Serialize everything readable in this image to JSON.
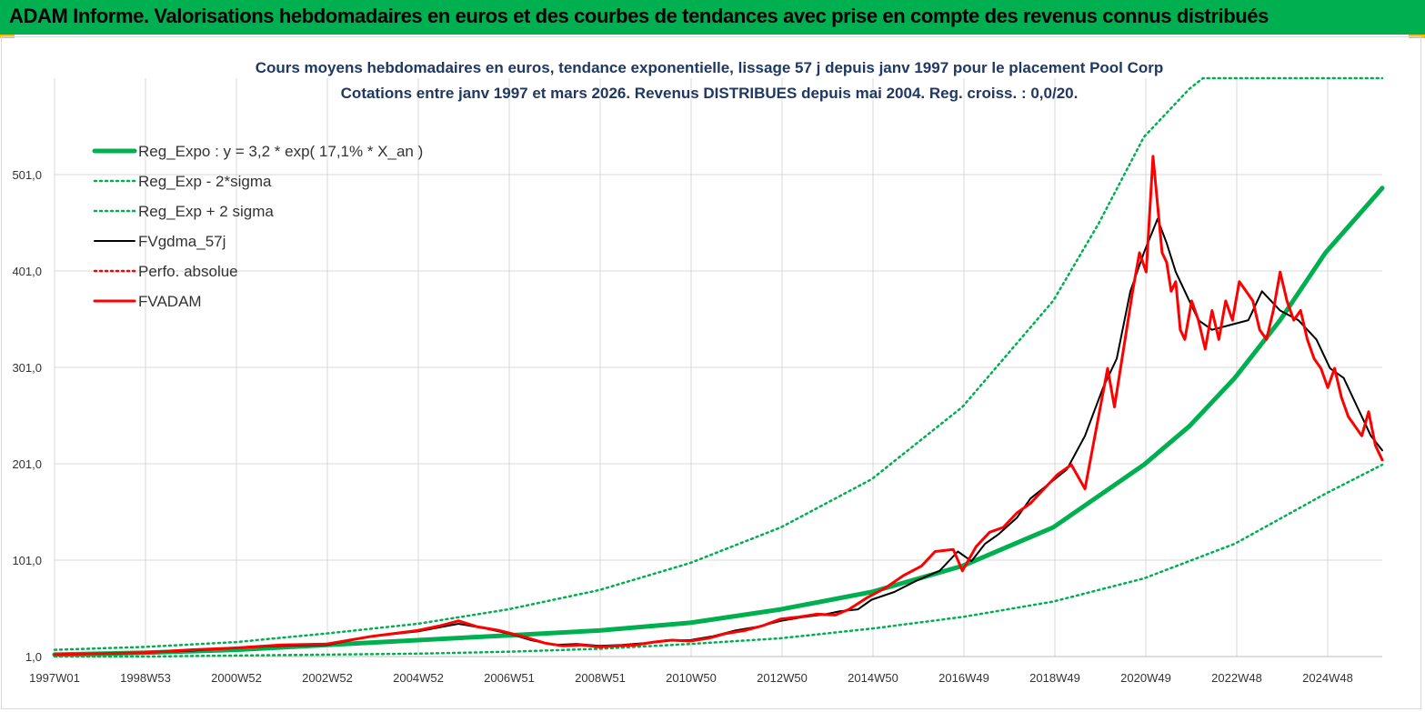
{
  "header": {
    "title": "ADAM Informe. Valorisations hebdomadaires en euros et des courbes de tendances avec prise en compte des revenus connus distribués"
  },
  "colors": {
    "header_bg": "#00b050",
    "accent": "#ffc000",
    "green": "#00b050",
    "green_dotted": "#00b050",
    "black": "#000000",
    "red": "#ff0000"
  },
  "chart_data": {
    "type": "line",
    "title": "Cours moyens hebdomadaires en euros, tendance exponentielle, lissage 57 j depuis janv 1997 pour le placement Pool Corp",
    "subtitle": "Cotations entre janv 1997 et mars 2026. Revenus DISTRIBUES depuis mai 2004. Reg. croiss. : 0,0/20.",
    "xlabel": "",
    "ylabel": "",
    "x_ticks": [
      "1997W01",
      "1998W53",
      "2000W52",
      "2002W52",
      "2004W52",
      "2006W51",
      "2008W51",
      "2010W50",
      "2012W50",
      "2014W50",
      "2016W49",
      "2018W49",
      "2020W49",
      "2022W48",
      "2024W48"
    ],
    "y_ticks": [
      "1,0",
      "101,0",
      "201,0",
      "301,0",
      "401,0",
      "501,0"
    ],
    "ylim": [
      1,
      601
    ],
    "xlim": [
      1997.0,
      2026.25
    ],
    "grid": true,
    "legend_position": "top-left",
    "series": [
      {
        "name": "Reg_Expo : y = 3,2 * exp( 17,1% *  X_an )",
        "style": "solid-thick",
        "color": "#00b050",
        "x": [
          1997,
          1999,
          2001,
          2003,
          2005,
          2007,
          2009,
          2011,
          2013,
          2015,
          2017,
          2019,
          2021,
          2022,
          2023,
          2024,
          2025,
          2026.25
        ],
        "values": [
          3,
          5,
          8,
          13,
          18,
          23,
          28,
          36,
          50,
          68,
          95,
          135,
          200,
          240,
          290,
          350,
          420,
          487
        ]
      },
      {
        "name": "Reg_Exp - 2*sigma",
        "style": "dotted",
        "color": "#00b050",
        "x": [
          1997,
          1999,
          2001,
          2003,
          2005,
          2007,
          2009,
          2011,
          2013,
          2015,
          2017,
          2019,
          2021,
          2023,
          2025,
          2026.25
        ],
        "values": [
          1,
          1,
          2,
          3,
          4,
          6,
          9,
          14,
          20,
          30,
          42,
          58,
          82,
          118,
          170,
          200
        ]
      },
      {
        "name": "Reg_Exp + 2 sigma",
        "style": "dotted",
        "color": "#00b050",
        "x": [
          1997,
          1999,
          2001,
          2003,
          2005,
          2007,
          2009,
          2011,
          2013,
          2015,
          2017,
          2019,
          2020,
          2021,
          2022,
          2022.3,
          2024,
          2026.25
        ],
        "values": [
          8,
          11,
          16,
          25,
          35,
          50,
          70,
          98,
          135,
          185,
          260,
          370,
          450,
          540,
          590,
          601,
          601,
          601
        ]
      },
      {
        "name": "FVgdma_57j",
        "style": "solid",
        "color": "#000000",
        "x": [
          1997,
          1998,
          1999,
          2000,
          2001,
          2002,
          2003,
          2004,
          2005,
          2005.9,
          2006.5,
          2007,
          2007.5,
          2008,
          2008.5,
          2009,
          2009.5,
          2010,
          2010.5,
          2011,
          2011.5,
          2012,
          2012.5,
          2013,
          2013.5,
          2014,
          2014.3,
          2014.7,
          2015,
          2015.5,
          2016,
          2016.5,
          2016.9,
          2017.2,
          2017.5,
          2017.8,
          2018.2,
          2018.5,
          2018.9,
          2019.3,
          2019.7,
          2020.1,
          2020.4,
          2020.7,
          2021.0,
          2021.3,
          2021.5,
          2021.7,
          2021.9,
          2022.2,
          2022.5,
          2022.9,
          2023.3,
          2023.6,
          2024.0,
          2024.4,
          2024.8,
          2025.1,
          2025.4,
          2025.7,
          2026.0,
          2026.25
        ],
        "values": [
          3,
          4,
          5,
          7,
          10,
          12,
          13,
          22,
          27,
          35,
          30,
          25,
          18,
          13,
          14,
          12,
          13,
          15,
          18,
          18,
          22,
          28,
          32,
          38,
          42,
          45,
          48,
          50,
          60,
          68,
          80,
          90,
          110,
          100,
          118,
          128,
          145,
          165,
          180,
          195,
          230,
          280,
          310,
          380,
          420,
          455,
          430,
          400,
          380,
          350,
          340,
          345,
          350,
          380,
          360,
          350,
          330,
          300,
          290,
          260,
          230,
          215
        ]
      },
      {
        "name": "Perfo. absolue",
        "style": "dotted",
        "color": "#ff0000",
        "x": [],
        "values": []
      },
      {
        "name": "FVADAM",
        "style": "solid-thick",
        "color": "#ff0000",
        "x": [
          1997,
          1998,
          1999,
          2000,
          2001,
          2002,
          2003,
          2004,
          2005,
          2005.5,
          2005.9,
          2006.3,
          2006.8,
          2007.3,
          2007.8,
          2008.2,
          2008.6,
          2009.0,
          2009.4,
          2009.8,
          2010.2,
          2010.6,
          2011.0,
          2011.4,
          2011.8,
          2012.2,
          2012.6,
          2013.0,
          2013.4,
          2013.8,
          2014.2,
          2014.5,
          2014.9,
          2015.3,
          2015.7,
          2016.1,
          2016.4,
          2016.8,
          2017.0,
          2017.3,
          2017.6,
          2017.9,
          2018.2,
          2018.5,
          2018.8,
          2019.1,
          2019.4,
          2019.7,
          2020.0,
          2020.2,
          2020.35,
          2020.55,
          2020.75,
          2020.9,
          2021.05,
          2021.2,
          2021.3,
          2021.4,
          2021.5,
          2021.6,
          2021.7,
          2021.8,
          2021.9,
          2022.05,
          2022.2,
          2022.35,
          2022.5,
          2022.65,
          2022.8,
          2022.95,
          2023.1,
          2023.25,
          2023.4,
          2023.55,
          2023.7,
          2023.85,
          2024.0,
          2024.15,
          2024.3,
          2024.45,
          2024.6,
          2024.75,
          2024.9,
          2025.05,
          2025.2,
          2025.35,
          2025.5,
          2025.65,
          2025.8,
          2025.95,
          2026.1,
          2026.25
        ],
        "values": [
          3,
          4,
          5,
          8,
          10,
          13,
          14,
          22,
          28,
          33,
          38,
          32,
          28,
          22,
          15,
          12,
          13,
          11,
          12,
          13,
          16,
          18,
          17,
          20,
          25,
          28,
          33,
          40,
          42,
          45,
          44,
          50,
          62,
          72,
          85,
          95,
          110,
          112,
          90,
          115,
          130,
          135,
          150,
          160,
          175,
          190,
          200,
          175,
          250,
          300,
          260,
          320,
          380,
          420,
          400,
          520,
          470,
          420,
          410,
          380,
          390,
          340,
          330,
          370,
          350,
          320,
          360,
          330,
          370,
          350,
          390,
          380,
          370,
          340,
          330,
          360,
          400,
          370,
          350,
          360,
          330,
          310,
          300,
          280,
          300,
          270,
          250,
          240,
          230,
          255,
          220,
          205
        ]
      }
    ]
  }
}
